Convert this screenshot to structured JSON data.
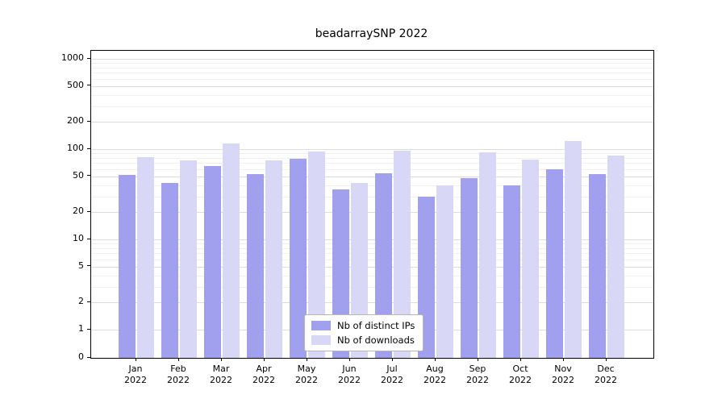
{
  "title": "beadarraySNP 2022",
  "chart_data": {
    "type": "bar",
    "title": "beadarraySNP 2022",
    "categories": [
      "Jan 2022",
      "Feb 2022",
      "Mar 2022",
      "Apr 2022",
      "May 2022",
      "Jun 2022",
      "Jul 2022",
      "Aug 2022",
      "Sep 2022",
      "Oct 2022",
      "Nov 2022",
      "Dec 2022"
    ],
    "series": [
      {
        "name": "Nb of distinct IPs",
        "color": "#a0a0ee",
        "values": [
          52,
          42,
          65,
          53,
          78,
          36,
          54,
          30,
          48,
          40,
          60,
          53
        ]
      },
      {
        "name": "Nb of downloads",
        "color": "#d8d8f6",
        "values": [
          82,
          75,
          115,
          75,
          95,
          42,
          96,
          40,
          92,
          76,
          122,
          85
        ]
      }
    ],
    "yscale": "symlog",
    "yticks": [
      0,
      1,
      2,
      5,
      10,
      20,
      50,
      100,
      200,
      500,
      1000
    ],
    "ylim": [
      0,
      1200
    ],
    "xlabel": "",
    "ylabel": "",
    "grid": true,
    "legend_position": "lower-center-inside"
  },
  "colors": {
    "axis": "#000000",
    "grid_major": "#dcdcdc",
    "grid_minor": "#f0f0f0",
    "background": "#ffffff"
  }
}
